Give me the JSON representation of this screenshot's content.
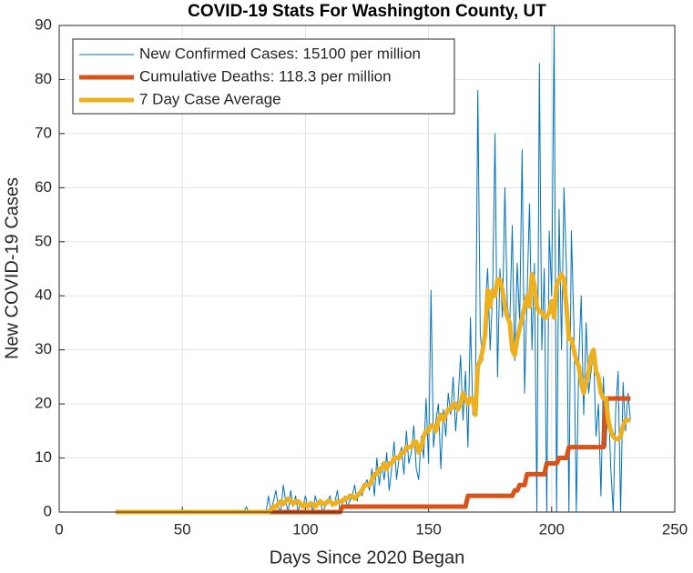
{
  "chart_data": {
    "type": "line",
    "title": "COVID-19 Stats For Washington County, UT",
    "xlabel": "Days Since 2020 Began",
    "ylabel": "New COVID-19 Cases",
    "xlim": [
      0,
      250
    ],
    "xticks": [
      0,
      50,
      100,
      150,
      200,
      250
    ],
    "ylim": [
      0,
      90
    ],
    "yticks": [
      0,
      10,
      20,
      30,
      40,
      50,
      60,
      70,
      80,
      90
    ],
    "grid": true,
    "legend": "top-left",
    "x": [
      23,
      24,
      25,
      26,
      27,
      28,
      29,
      30,
      31,
      32,
      33,
      34,
      35,
      36,
      37,
      38,
      39,
      40,
      41,
      42,
      43,
      44,
      45,
      46,
      47,
      48,
      49,
      50,
      51,
      52,
      53,
      54,
      55,
      56,
      57,
      58,
      59,
      60,
      61,
      62,
      63,
      64,
      65,
      66,
      67,
      68,
      69,
      70,
      71,
      72,
      73,
      74,
      75,
      76,
      77,
      78,
      79,
      80,
      81,
      82,
      83,
      84,
      85,
      86,
      87,
      88,
      89,
      90,
      91,
      92,
      93,
      94,
      95,
      96,
      97,
      98,
      99,
      100,
      101,
      102,
      103,
      104,
      105,
      106,
      107,
      108,
      109,
      110,
      111,
      112,
      113,
      114,
      115,
      116,
      117,
      118,
      119,
      120,
      121,
      122,
      123,
      124,
      125,
      126,
      127,
      128,
      129,
      130,
      131,
      132,
      133,
      134,
      135,
      136,
      137,
      138,
      139,
      140,
      141,
      142,
      143,
      144,
      145,
      146,
      147,
      148,
      149,
      150,
      151,
      152,
      153,
      154,
      155,
      156,
      157,
      158,
      159,
      160,
      161,
      162,
      163,
      164,
      165,
      166,
      167,
      168,
      169,
      170,
      171,
      172,
      173,
      174,
      175,
      176,
      177,
      178,
      179,
      180,
      181,
      182,
      183,
      184,
      185,
      186,
      187,
      188,
      189,
      190,
      191,
      192,
      193,
      194,
      195,
      196,
      197,
      198,
      199,
      200,
      201,
      202,
      203,
      204,
      205,
      206,
      207,
      208,
      209,
      210,
      211,
      212,
      213,
      214,
      215,
      216,
      217,
      218,
      219,
      220,
      221,
      222,
      223,
      224,
      225,
      226,
      227,
      228,
      229,
      230,
      231,
      232
    ],
    "series": [
      {
        "name": "New Confirmed Cases: 15100 per million",
        "color": "#0072bd",
        "width": 1,
        "values": [
          0,
          0,
          0,
          0,
          0,
          0,
          0,
          0,
          0,
          0,
          0,
          0,
          0,
          0,
          0,
          0,
          0,
          0,
          0,
          0,
          0,
          0,
          0,
          0,
          0,
          0,
          0,
          0,
          0,
          0,
          0,
          0,
          0,
          0,
          0,
          0,
          0,
          0,
          0,
          0,
          0,
          0,
          0,
          0,
          0,
          0,
          0,
          0,
          0,
          0,
          0,
          0,
          0,
          1,
          0,
          0,
          0,
          0,
          0,
          0,
          0,
          0,
          3,
          0,
          2,
          4,
          1,
          0,
          5,
          2,
          0,
          4,
          1,
          3,
          0,
          2,
          1,
          3,
          1,
          2,
          0,
          3,
          1,
          2,
          0,
          1,
          2,
          3,
          1,
          2,
          4,
          0,
          2,
          3,
          1,
          2,
          3,
          5,
          2,
          4,
          3,
          5,
          6,
          4,
          8,
          3,
          10,
          5,
          9,
          6,
          11,
          4,
          8,
          13,
          6,
          10,
          12,
          7,
          15,
          9,
          11,
          16,
          8,
          6,
          14,
          10,
          21,
          9,
          41,
          12,
          17,
          20,
          8,
          19,
          14,
          22,
          18,
          25,
          15,
          21,
          29,
          17,
          26,
          12,
          36,
          18,
          20,
          78,
          33,
          28,
          38,
          45,
          30,
          40,
          70,
          25,
          45,
          36,
          60,
          38,
          35,
          53,
          28,
          46,
          35,
          67,
          22,
          40,
          57,
          30,
          46,
          0,
          83,
          30,
          45,
          0,
          52,
          40,
          90,
          0,
          56,
          30,
          60,
          45,
          0,
          52,
          35,
          0,
          28,
          40,
          18,
          35,
          22,
          26,
          30,
          14,
          20,
          3,
          25,
          12,
          21,
          8,
          0,
          19,
          26,
          0,
          24,
          15,
          22,
          17
        ]
      },
      {
        "name": "Cumulative Deaths: 118.3 per million",
        "color": "#d95319",
        "width": 5,
        "values": [
          0,
          0,
          0,
          0,
          0,
          0,
          0,
          0,
          0,
          0,
          0,
          0,
          0,
          0,
          0,
          0,
          0,
          0,
          0,
          0,
          0,
          0,
          0,
          0,
          0,
          0,
          0,
          0,
          0,
          0,
          0,
          0,
          0,
          0,
          0,
          0,
          0,
          0,
          0,
          0,
          0,
          0,
          0,
          0,
          0,
          0,
          0,
          0,
          0,
          0,
          0,
          0,
          0,
          0,
          0,
          0,
          0,
          0,
          0,
          0,
          0,
          0,
          0,
          0,
          0,
          0,
          0,
          0,
          0,
          0,
          0,
          0,
          0,
          0,
          0,
          0,
          0,
          0,
          0,
          0,
          0,
          0,
          0,
          0,
          0,
          0,
          0,
          0,
          0,
          0,
          0,
          0,
          1,
          1,
          1,
          1,
          1,
          1,
          1,
          1,
          1,
          1,
          1,
          1,
          1,
          1,
          1,
          1,
          1,
          1,
          1,
          1,
          1,
          1,
          1,
          1,
          1,
          1,
          1,
          1,
          1,
          1,
          1,
          1,
          1,
          1,
          1,
          1,
          1,
          1,
          1,
          1,
          1,
          1,
          1,
          1,
          1,
          1,
          1,
          1,
          1,
          1,
          1,
          3,
          3,
          3,
          3,
          3,
          3,
          3,
          3,
          3,
          3,
          3,
          3,
          3,
          3,
          3,
          3,
          3,
          3,
          3,
          4,
          4,
          5,
          5,
          5,
          7,
          7,
          7,
          7,
          7,
          7,
          7,
          7,
          9,
          9,
          9,
          9,
          9,
          10,
          10,
          10,
          10,
          12,
          12,
          12,
          12,
          12,
          12,
          12,
          12,
          12,
          12,
          12,
          12,
          12,
          12,
          12,
          21,
          21,
          21,
          21,
          21,
          21,
          21,
          21,
          21,
          21,
          21
        ]
      },
      {
        "name": "7 Day Case Average",
        "color": "#edb120",
        "width": 5,
        "values": [
          0,
          0,
          0,
          0,
          0,
          0,
          0,
          0,
          0,
          0,
          0,
          0,
          0,
          0,
          0,
          0,
          0,
          0,
          0,
          0,
          0,
          0,
          0,
          0,
          0,
          0,
          0,
          0,
          0,
          0,
          0,
          0,
          0,
          0,
          0,
          0,
          0,
          0,
          0,
          0,
          0,
          0,
          0,
          0,
          0,
          0,
          0,
          0,
          0,
          0,
          0,
          0,
          0,
          0,
          0,
          0,
          0,
          0,
          0,
          0,
          0,
          0,
          0,
          0.5,
          1,
          1,
          1.5,
          2,
          1.5,
          2,
          2.5,
          2,
          1.5,
          2,
          2,
          1.5,
          1,
          1.5,
          1,
          1.5,
          1.5,
          1,
          1.5,
          2,
          1.5,
          1.5,
          2,
          2,
          1.5,
          1.5,
          2,
          2,
          2,
          2.5,
          2.5,
          3,
          3,
          2.5,
          3,
          3.5,
          4,
          5,
          5,
          5,
          6,
          7,
          7,
          8,
          8,
          9,
          8,
          9,
          9,
          10,
          10,
          10,
          11,
          11,
          12,
          12,
          12,
          13,
          13,
          11,
          12,
          14,
          15,
          15,
          16,
          16,
          15,
          17,
          18,
          17,
          18,
          19,
          19,
          20,
          20,
          19,
          20,
          22,
          21,
          20,
          21,
          21,
          18,
          27,
          28,
          30,
          33,
          41,
          38,
          41,
          40,
          43,
          43,
          41,
          38,
          36,
          35,
          30,
          29,
          32,
          34,
          36,
          38,
          40,
          38,
          44,
          42,
          38,
          37,
          37,
          36,
          36,
          37,
          39,
          36,
          42,
          43,
          44,
          43,
          38,
          32,
          32,
          30,
          28,
          27,
          24,
          22,
          24,
          26,
          29,
          30,
          26,
          25,
          22,
          21,
          21,
          17,
          15,
          14,
          13.5,
          13.5,
          14,
          16,
          17,
          17,
          17
        ]
      }
    ]
  }
}
